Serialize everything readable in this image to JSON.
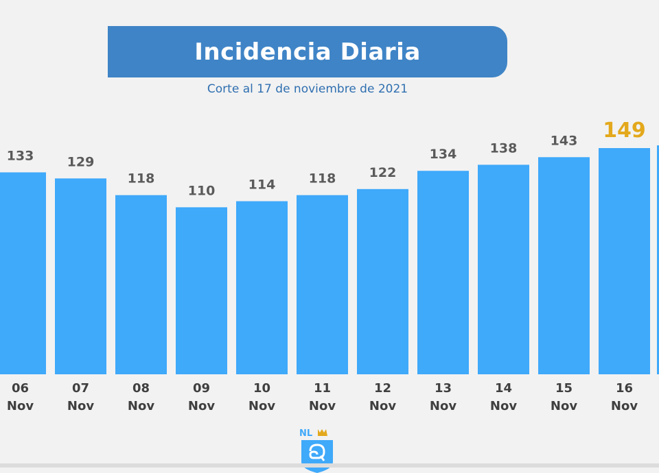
{
  "header": {
    "title": "Incidencia Diaria",
    "subtitle": "Corte al 17 de noviembre de 2021"
  },
  "logo": {
    "text": "NL",
    "icon": "nuevo-leon-shield-icon"
  },
  "colors": {
    "bar": "#3fa9fa",
    "banner": "#3f84c6",
    "highlight": "#e3a81c",
    "value_label": "#5a5a5a"
  },
  "chart_data": {
    "type": "bar",
    "title": "Incidencia Diaria",
    "subtitle": "Corte al 17 de noviembre de 2021",
    "categories": [
      {
        "day": "06",
        "month": "Nov"
      },
      {
        "day": "07",
        "month": "Nov"
      },
      {
        "day": "08",
        "month": "Nov"
      },
      {
        "day": "09",
        "month": "Nov"
      },
      {
        "day": "10",
        "month": "Nov"
      },
      {
        "day": "11",
        "month": "Nov"
      },
      {
        "day": "12",
        "month": "Nov"
      },
      {
        "day": "13",
        "month": "Nov"
      },
      {
        "day": "14",
        "month": "Nov"
      },
      {
        "day": "15",
        "month": "Nov"
      },
      {
        "day": "16",
        "month": "Nov"
      }
    ],
    "values": [
      133,
      129,
      118,
      110,
      114,
      118,
      122,
      134,
      138,
      143,
      149
    ],
    "highlight_index": 10,
    "xlabel": "",
    "ylabel": "",
    "grid": false,
    "legend": "none"
  }
}
